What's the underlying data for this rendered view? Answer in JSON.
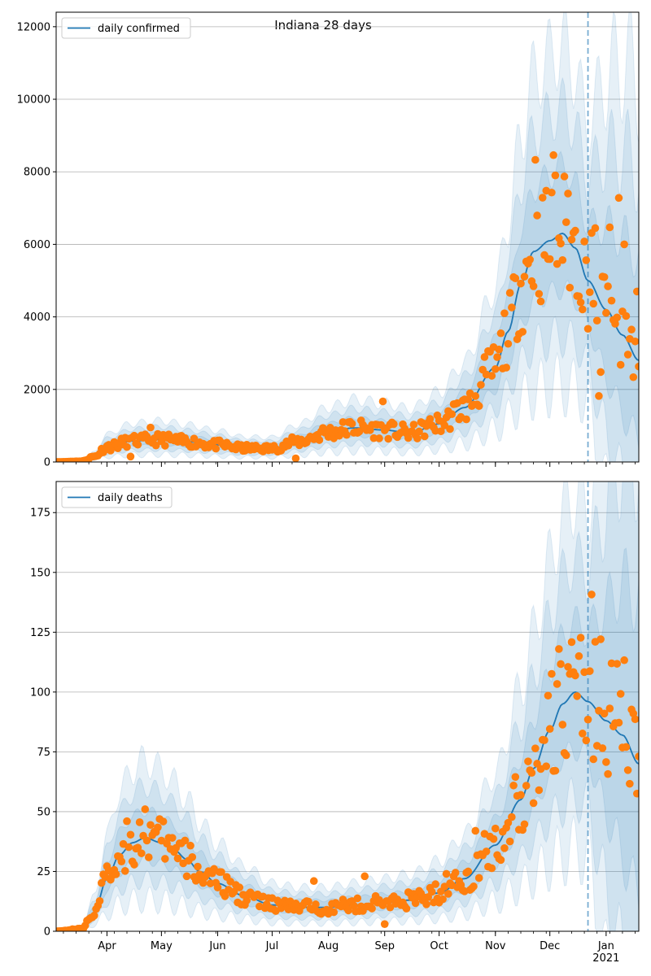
{
  "title": "Indiana 28 days",
  "colors": {
    "line": "#1f77b4",
    "dots": "#ff7f0e",
    "band": "#1f77b4",
    "grid": "#b0b0b0",
    "forecast_marker": "#1f77b4"
  },
  "x_axis": {
    "months": [
      "Apr",
      "May",
      "Jun",
      "Jul",
      "Aug",
      "Sep",
      "Oct",
      "Nov",
      "Dec",
      "Jan"
    ],
    "year_label": "2021",
    "start_date": "2020-03-04",
    "end_date": "2021-01-19",
    "forecast_start": "2020-12-22"
  },
  "chart_data": [
    {
      "type": "line",
      "legend": "daily confirmed",
      "ylim": [
        0,
        12400
      ],
      "yticks": [
        0,
        2000,
        4000,
        6000,
        8000,
        10000,
        12000
      ],
      "grid": "horizontal",
      "legend_position": "top-left",
      "trend_keypoints": [
        [
          "2020-03-04",
          0
        ],
        [
          "2020-03-18",
          20
        ],
        [
          "2020-03-25",
          150
        ],
        [
          "2020-04-01",
          420
        ],
        [
          "2020-04-15",
          580
        ],
        [
          "2020-05-01",
          620
        ],
        [
          "2020-05-15",
          560
        ],
        [
          "2020-06-01",
          470
        ],
        [
          "2020-06-15",
          380
        ],
        [
          "2020-07-01",
          370
        ],
        [
          "2020-07-15",
          560
        ],
        [
          "2020-08-01",
          820
        ],
        [
          "2020-08-15",
          940
        ],
        [
          "2020-09-01",
          880
        ],
        [
          "2020-09-15",
          800
        ],
        [
          "2020-10-01",
          1050
        ],
        [
          "2020-10-15",
          1500
        ],
        [
          "2020-11-01",
          2600
        ],
        [
          "2020-11-08",
          3600
        ],
        [
          "2020-11-15",
          4900
        ],
        [
          "2020-11-22",
          5800
        ],
        [
          "2020-12-01",
          6100
        ],
        [
          "2020-12-08",
          6300
        ],
        [
          "2020-12-15",
          5900
        ],
        [
          "2020-12-22",
          5000
        ],
        [
          "2021-01-01",
          4200
        ],
        [
          "2021-01-10",
          3500
        ],
        [
          "2021-01-19",
          2800
        ]
      ],
      "observed_points": [
        [
          "2020-04-25",
          950
        ],
        [
          "2020-08-31",
          1670
        ],
        [
          "2020-11-23",
          8330
        ],
        [
          "2020-12-03",
          8460
        ],
        [
          "2020-12-04",
          7900
        ],
        [
          "2020-12-11",
          7400
        ],
        [
          "2020-12-28",
          1820
        ],
        [
          "2020-12-29",
          2480
        ],
        [
          "2021-01-03",
          6470
        ],
        [
          "2021-01-08",
          7280
        ],
        [
          "2021-01-11",
          6000
        ],
        [
          "2021-01-15",
          3650
        ],
        [
          "2021-01-18",
          4700
        ],
        [
          "2020-07-14",
          100
        ],
        [
          "2020-04-14",
          150
        ]
      ]
    },
    {
      "type": "line",
      "legend": "daily deaths",
      "ylim": [
        0,
        188
      ],
      "yticks": [
        0,
        25,
        50,
        75,
        100,
        125,
        150,
        175
      ],
      "grid": "horizontal",
      "legend_position": "top-left",
      "trend_keypoints": [
        [
          "2020-03-04",
          0
        ],
        [
          "2020-03-18",
          1
        ],
        [
          "2020-03-25",
          8
        ],
        [
          "2020-04-01",
          22
        ],
        [
          "2020-04-08",
          32
        ],
        [
          "2020-04-15",
          37
        ],
        [
          "2020-04-22",
          39
        ],
        [
          "2020-05-01",
          37
        ],
        [
          "2020-05-08",
          34
        ],
        [
          "2020-05-15",
          30
        ],
        [
          "2020-05-22",
          25
        ],
        [
          "2020-06-01",
          20
        ],
        [
          "2020-06-15",
          15
        ],
        [
          "2020-07-01",
          11
        ],
        [
          "2020-07-15",
          10
        ],
        [
          "2020-08-01",
          10
        ],
        [
          "2020-08-15",
          11
        ],
        [
          "2020-09-01",
          12
        ],
        [
          "2020-09-15",
          13
        ],
        [
          "2020-10-01",
          16
        ],
        [
          "2020-10-15",
          22
        ],
        [
          "2020-11-01",
          36
        ],
        [
          "2020-11-15",
          55
        ],
        [
          "2020-11-22",
          68
        ],
        [
          "2020-12-01",
          84
        ],
        [
          "2020-12-08",
          95
        ],
        [
          "2020-12-15",
          100
        ],
        [
          "2020-12-22",
          96
        ],
        [
          "2021-01-01",
          88
        ],
        [
          "2021-01-10",
          82
        ],
        [
          "2021-01-19",
          70
        ]
      ],
      "observed_points": [
        [
          "2020-04-22",
          51
        ],
        [
          "2020-04-12",
          46
        ],
        [
          "2020-12-26",
          121
        ],
        [
          "2021-01-04",
          112
        ],
        [
          "2020-12-17",
          115
        ],
        [
          "2020-11-19",
          71
        ],
        [
          "2020-07-24",
          21
        ],
        [
          "2020-08-21",
          23
        ],
        [
          "2020-09-01",
          3
        ],
        [
          "2020-10-05",
          24
        ],
        [
          "2020-10-21",
          42
        ]
      ]
    }
  ]
}
